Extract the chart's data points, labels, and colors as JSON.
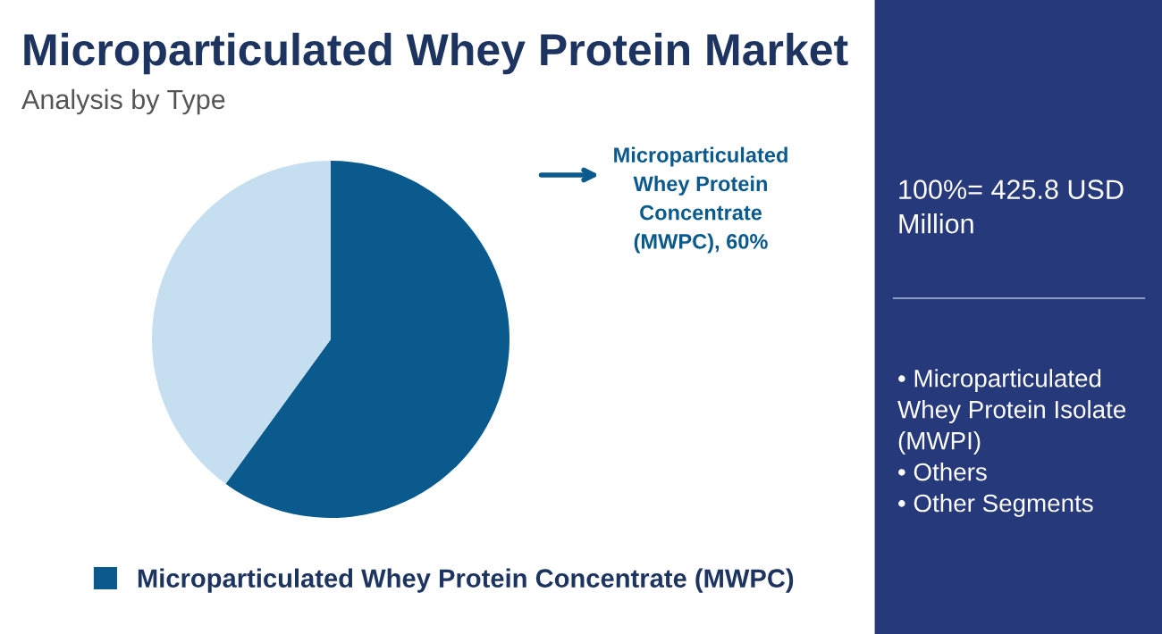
{
  "chart_data": {
    "type": "pie",
    "title": "Microparticulated Whey Protein Market",
    "subtitle": "Analysis by Type",
    "categories": [
      "Microparticulated Whey Protein Concentrate (MWPC)",
      null
    ],
    "values": [
      60,
      40
    ],
    "colors": [
      "#0b5a8e",
      "#c6dff0"
    ],
    "value_labels": [
      "Microparticulated\nWhey Protein\nConcentrate\n(MWPC), 60%",
      null
    ],
    "legend": "bottom",
    "annotations": [
      "100%= 425.8 USD\nMillion",
      "• Microparticulated\nWhey Protein Isolate\n(MWPI)\n• Others\n• Other Segments"
    ]
  }
}
